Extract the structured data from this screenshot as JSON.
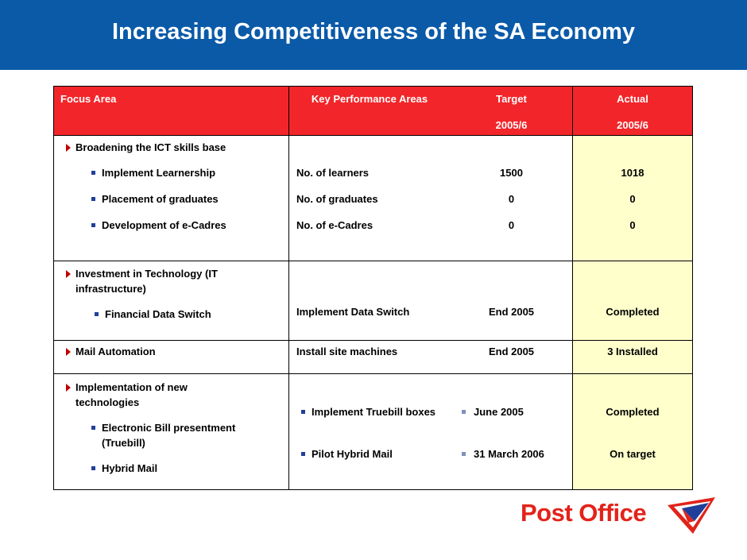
{
  "header": {
    "title": "Increasing Competitiveness of the SA Economy"
  },
  "table": {
    "columns": [
      {
        "label": "Focus Area"
      },
      {
        "label": "Key Performance Areas"
      },
      {
        "label": "Target",
        "period": "2005/6"
      },
      {
        "label": "Actual",
        "period": "2005/6"
      }
    ],
    "groups": [
      {
        "focus": "Broadening the ICT skills base",
        "items": [
          {
            "task": "Implement Learnership",
            "kpa": "No. of learners",
            "target": 1500,
            "actual": 1018
          },
          {
            "task": "Placement of graduates",
            "kpa": "No. of graduates",
            "target": 0,
            "actual": 0
          },
          {
            "task": "Development of e-Cadres",
            "kpa": "No. of e-Cadres",
            "target": 0,
            "actual": 0
          }
        ]
      },
      {
        "focus": "Investment in Technology (IT infrastructure)",
        "items": [
          {
            "task": "Financial Data Switch",
            "kpa": "Implement Data Switch",
            "target": "End 2005",
            "actual": "Completed"
          }
        ]
      },
      {
        "focus": "Mail Automation",
        "kpa": "Install site machines",
        "target": "End 2005",
        "actual": "3 Installed"
      },
      {
        "focus": "Implementation of new technologies",
        "tasks": [
          "Electronic Bill presentment (Truebill)",
          "Hybrid Mail"
        ],
        "measures": [
          {
            "kpa": "Implement Truebill boxes",
            "target": "June 2005",
            "actual": "Completed"
          },
          {
            "kpa": "Pilot Hybrid Mail",
            "target": "31 March 2006",
            "actual": "On target"
          }
        ]
      }
    ]
  },
  "logo": {
    "text": "Post Office"
  }
}
